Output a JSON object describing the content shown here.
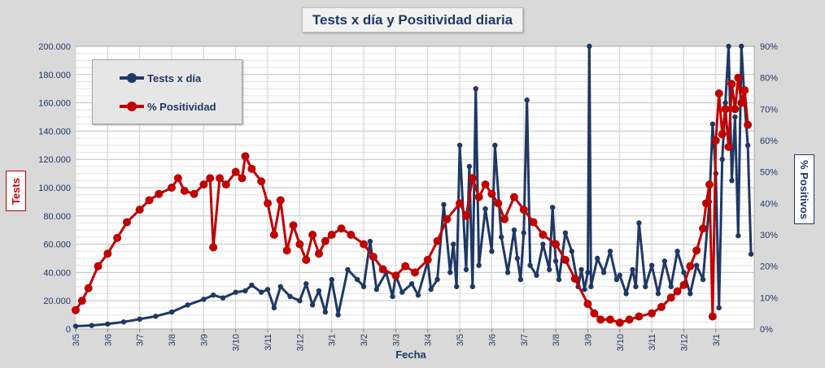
{
  "chart_data": {
    "type": "line",
    "title": "Tests x día y Positividad  diaria",
    "xlabel": "Fecha",
    "ylabel": "Tests",
    "y2label": "% Positivos",
    "ylim": [
      0,
      200000
    ],
    "y2lim": [
      0,
      90
    ],
    "y_ticks": [
      "0",
      "20.000",
      "40.000",
      "60.000",
      "80.000",
      "100.000",
      "120.000",
      "140.000",
      "160.000",
      "180.000",
      "200.000"
    ],
    "y2_ticks": [
      "0%",
      "10%",
      "20%",
      "30%",
      "40%",
      "50%",
      "60%",
      "70%",
      "80%",
      "90%"
    ],
    "x_ticks": [
      "3/5",
      "3/6",
      "3/7",
      "3/8",
      "3/9",
      "3/10",
      "3/11",
      "3/12",
      "3/1",
      "3/2",
      "3/3",
      "3/4",
      "3/5",
      "3/6",
      "3/7",
      "3/8",
      "3/9",
      "3/10",
      "3/11",
      "3/12",
      "3/1"
    ],
    "grid": true,
    "legend_position": "top-left",
    "series": [
      {
        "name": "Tests x día",
        "axis": "left",
        "color": "#1f3864",
        "points": [
          [
            0,
            2000
          ],
          [
            0.5,
            2500
          ],
          [
            1,
            3500
          ],
          [
            1.5,
            5000
          ],
          [
            2,
            7000
          ],
          [
            2.5,
            9000
          ],
          [
            3,
            12000
          ],
          [
            3.5,
            17000
          ],
          [
            4,
            21000
          ],
          [
            4.3,
            24000
          ],
          [
            4.6,
            22000
          ],
          [
            5,
            26000
          ],
          [
            5.3,
            27000
          ],
          [
            5.5,
            31000
          ],
          [
            5.8,
            26000
          ],
          [
            6,
            28000
          ],
          [
            6.2,
            15000
          ],
          [
            6.4,
            30000
          ],
          [
            6.7,
            23000
          ],
          [
            7,
            20000
          ],
          [
            7.2,
            32000
          ],
          [
            7.4,
            17000
          ],
          [
            7.6,
            27000
          ],
          [
            7.8,
            12000
          ],
          [
            8,
            35000
          ],
          [
            8.2,
            10000
          ],
          [
            8.5,
            42000
          ],
          [
            8.8,
            35000
          ],
          [
            9,
            30000
          ],
          [
            9.2,
            62000
          ],
          [
            9.4,
            28000
          ],
          [
            9.7,
            40000
          ],
          [
            9.9,
            23000
          ],
          [
            10,
            38000
          ],
          [
            10.2,
            26000
          ],
          [
            10.5,
            32000
          ],
          [
            10.7,
            24000
          ],
          [
            11,
            48000
          ],
          [
            11.1,
            28000
          ],
          [
            11.3,
            35000
          ],
          [
            11.5,
            88000
          ],
          [
            11.7,
            40000
          ],
          [
            11.8,
            60000
          ],
          [
            11.9,
            30000
          ],
          [
            12,
            130000
          ],
          [
            12.2,
            42000
          ],
          [
            12.3,
            115000
          ],
          [
            12.4,
            30000
          ],
          [
            12.5,
            170000
          ],
          [
            12.6,
            45000
          ],
          [
            12.8,
            85000
          ],
          [
            13,
            55000
          ],
          [
            13.1,
            130000
          ],
          [
            13.3,
            65000
          ],
          [
            13.5,
            40000
          ],
          [
            13.7,
            70000
          ],
          [
            13.8,
            50000
          ],
          [
            13.9,
            35000
          ],
          [
            14,
            68000
          ],
          [
            14.1,
            162000
          ],
          [
            14.2,
            45000
          ],
          [
            14.4,
            38000
          ],
          [
            14.6,
            60000
          ],
          [
            14.8,
            42000
          ],
          [
            14.9,
            86000
          ],
          [
            15,
            48000
          ],
          [
            15.1,
            35000
          ],
          [
            15.3,
            68000
          ],
          [
            15.5,
            55000
          ],
          [
            15.7,
            30000
          ],
          [
            15.8,
            42000
          ],
          [
            15.9,
            28000
          ],
          [
            16,
            40000
          ],
          [
            16.05,
            200000
          ],
          [
            16.1,
            30000
          ],
          [
            16.3,
            50000
          ],
          [
            16.5,
            40000
          ],
          [
            16.7,
            55000
          ],
          [
            16.9,
            35000
          ],
          [
            17,
            38000
          ],
          [
            17.2,
            25000
          ],
          [
            17.4,
            42000
          ],
          [
            17.5,
            30000
          ],
          [
            17.6,
            75000
          ],
          [
            17.8,
            30000
          ],
          [
            18,
            45000
          ],
          [
            18.2,
            25000
          ],
          [
            18.4,
            48000
          ],
          [
            18.6,
            30000
          ],
          [
            18.8,
            55000
          ],
          [
            19,
            40000
          ],
          [
            19.2,
            25000
          ],
          [
            19.4,
            45000
          ],
          [
            19.6,
            35000
          ],
          [
            19.8,
            90000
          ],
          [
            19.9,
            145000
          ],
          [
            20,
            110000
          ],
          [
            20.1,
            15000
          ],
          [
            20.2,
            120000
          ],
          [
            20.3,
            160000
          ],
          [
            20.4,
            200000
          ],
          [
            20.5,
            105000
          ],
          [
            20.6,
            150000
          ],
          [
            20.7,
            66000
          ],
          [
            20.8,
            200000
          ],
          [
            20.9,
            160000
          ],
          [
            21,
            130000
          ],
          [
            21.1,
            53000
          ]
        ]
      },
      {
        "name": "% Positividad",
        "axis": "right",
        "color": "#c00000",
        "points": [
          [
            0,
            6
          ],
          [
            0.2,
            9
          ],
          [
            0.4,
            13
          ],
          [
            0.7,
            20
          ],
          [
            1,
            24
          ],
          [
            1.3,
            29
          ],
          [
            1.6,
            34
          ],
          [
            2,
            38
          ],
          [
            2.3,
            41
          ],
          [
            2.6,
            43
          ],
          [
            3,
            45
          ],
          [
            3.2,
            48
          ],
          [
            3.4,
            44
          ],
          [
            3.7,
            43
          ],
          [
            4,
            46
          ],
          [
            4.2,
            48
          ],
          [
            4.3,
            26
          ],
          [
            4.5,
            48
          ],
          [
            4.7,
            46
          ],
          [
            5,
            50
          ],
          [
            5.2,
            48
          ],
          [
            5.3,
            55
          ],
          [
            5.5,
            51
          ],
          [
            5.8,
            47
          ],
          [
            6,
            40
          ],
          [
            6.2,
            30
          ],
          [
            6.4,
            41
          ],
          [
            6.6,
            25
          ],
          [
            6.8,
            33
          ],
          [
            7,
            27
          ],
          [
            7.2,
            22
          ],
          [
            7.4,
            30
          ],
          [
            7.6,
            24
          ],
          [
            7.8,
            28
          ],
          [
            8,
            30
          ],
          [
            8.3,
            32
          ],
          [
            8.6,
            30
          ],
          [
            9,
            27
          ],
          [
            9.3,
            23
          ],
          [
            9.6,
            19
          ],
          [
            10,
            17
          ],
          [
            10.3,
            20
          ],
          [
            10.6,
            18
          ],
          [
            11,
            22
          ],
          [
            11.3,
            28
          ],
          [
            11.6,
            35
          ],
          [
            12,
            40
          ],
          [
            12.2,
            36
          ],
          [
            12.4,
            48
          ],
          [
            12.6,
            42
          ],
          [
            12.8,
            46
          ],
          [
            13,
            43
          ],
          [
            13.2,
            40
          ],
          [
            13.4,
            35
          ],
          [
            13.7,
            42
          ],
          [
            14,
            38
          ],
          [
            14.3,
            34
          ],
          [
            14.6,
            30
          ],
          [
            15,
            27
          ],
          [
            15.3,
            22
          ],
          [
            15.6,
            16
          ],
          [
            16,
            8
          ],
          [
            16.2,
            5
          ],
          [
            16.4,
            3
          ],
          [
            16.7,
            3
          ],
          [
            17,
            2
          ],
          [
            17.3,
            3
          ],
          [
            17.6,
            4
          ],
          [
            18,
            5
          ],
          [
            18.3,
            7
          ],
          [
            18.6,
            10
          ],
          [
            18.8,
            12
          ],
          [
            19,
            14
          ],
          [
            19.2,
            20
          ],
          [
            19.4,
            25
          ],
          [
            19.6,
            32
          ],
          [
            19.7,
            40
          ],
          [
            19.8,
            46
          ],
          [
            19.9,
            4
          ],
          [
            20,
            60
          ],
          [
            20.1,
            75
          ],
          [
            20.2,
            62
          ],
          [
            20.3,
            70
          ],
          [
            20.4,
            58
          ],
          [
            20.5,
            78
          ],
          [
            20.6,
            70
          ],
          [
            20.7,
            80
          ],
          [
            20.8,
            72
          ],
          [
            20.9,
            76
          ],
          [
            21,
            65
          ]
        ]
      }
    ]
  }
}
